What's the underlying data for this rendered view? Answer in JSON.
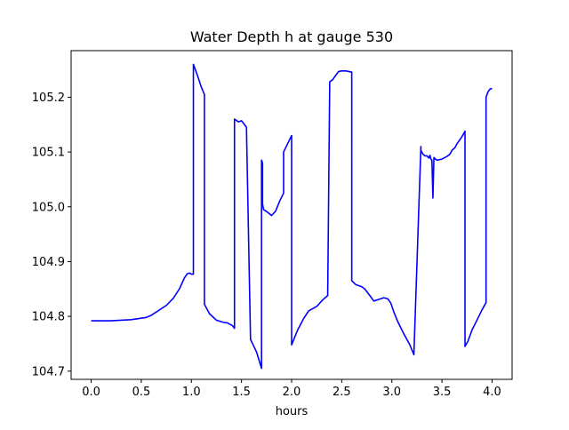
{
  "chart_data": {
    "type": "line",
    "title": "Water Depth h at gauge 530",
    "xlabel": "hours",
    "ylabel": "",
    "xlim": [
      -0.2,
      4.2
    ],
    "ylim": [
      104.685,
      105.285
    ],
    "xticks": [
      0.0,
      0.5,
      1.0,
      1.5,
      2.0,
      2.5,
      3.0,
      3.5,
      4.0
    ],
    "xtick_labels": [
      "0.0",
      "0.5",
      "1.0",
      "1.5",
      "2.0",
      "2.5",
      "3.0",
      "3.5",
      "4.0"
    ],
    "yticks": [
      104.7,
      104.8,
      104.9,
      105.0,
      105.1,
      105.2
    ],
    "ytick_labels": [
      "104.7",
      "104.8",
      "104.9",
      "105.0",
      "105.1",
      "105.2"
    ],
    "grid": false,
    "legend": "none",
    "series": [
      {
        "color": "#0000ff",
        "x": [
          0.0,
          0.2,
          0.4,
          0.55,
          0.6,
          0.65,
          0.75,
          0.82,
          0.88,
          0.93,
          0.96,
          0.98,
          1.0,
          1.01,
          1.02,
          1.02,
          1.04,
          1.06,
          1.1,
          1.13,
          1.13,
          1.18,
          1.25,
          1.32,
          1.36,
          1.41,
          1.43,
          1.43,
          1.47,
          1.5,
          1.53,
          1.55,
          1.55,
          1.59,
          1.65,
          1.7,
          1.7,
          1.71,
          1.71,
          1.72,
          1.76,
          1.8,
          1.84,
          1.88,
          1.92,
          1.92,
          1.96,
          2.0,
          2.0,
          2.06,
          2.12,
          2.17,
          2.25,
          2.31,
          2.36,
          2.38,
          2.38,
          2.41,
          2.44,
          2.47,
          2.5,
          2.54,
          2.57,
          2.59,
          2.6,
          2.6,
          2.64,
          2.67,
          2.7,
          2.73,
          2.78,
          2.82,
          2.87,
          2.92,
          2.96,
          2.99,
          3.02,
          3.06,
          3.12,
          3.18,
          3.22,
          3.29,
          3.29,
          3.31,
          3.33,
          3.35,
          3.37,
          3.38,
          3.39,
          3.4,
          3.41,
          3.42,
          3.43,
          3.45,
          3.5,
          3.55,
          3.58,
          3.6,
          3.63,
          3.65,
          3.7,
          3.73,
          3.73,
          3.76,
          3.8,
          3.86,
          3.9,
          3.94,
          3.94,
          3.96,
          3.98,
          4.0
        ],
        "values": [
          104.792,
          104.792,
          104.794,
          104.798,
          104.802,
          104.808,
          104.82,
          104.833,
          104.85,
          104.87,
          104.878,
          104.879,
          104.877,
          104.877,
          104.877,
          105.26,
          105.25,
          105.24,
          105.218,
          105.205,
          104.822,
          104.805,
          104.793,
          104.789,
          104.788,
          104.783,
          104.778,
          105.16,
          105.155,
          105.157,
          105.15,
          105.145,
          105.14,
          104.758,
          104.735,
          104.705,
          105.085,
          105.08,
          105.005,
          104.995,
          104.99,
          104.984,
          104.992,
          105.01,
          105.025,
          105.1,
          105.115,
          105.13,
          104.748,
          104.775,
          104.796,
          104.81,
          104.818,
          104.83,
          104.838,
          105.222,
          105.228,
          105.232,
          105.24,
          105.247,
          105.248,
          105.248,
          105.247,
          105.246,
          105.246,
          104.865,
          104.858,
          104.856,
          104.854,
          104.85,
          104.838,
          104.828,
          104.831,
          104.834,
          104.832,
          104.824,
          104.808,
          104.79,
          104.768,
          104.748,
          104.73,
          105.11,
          105.103,
          105.096,
          105.093,
          105.093,
          105.089,
          105.094,
          105.087,
          105.085,
          105.016,
          105.09,
          105.088,
          105.085,
          105.087,
          105.092,
          105.096,
          105.103,
          105.108,
          105.115,
          105.128,
          105.138,
          104.745,
          104.755,
          104.775,
          104.797,
          104.812,
          104.825,
          105.2,
          105.21,
          105.215,
          105.216
        ]
      }
    ]
  }
}
